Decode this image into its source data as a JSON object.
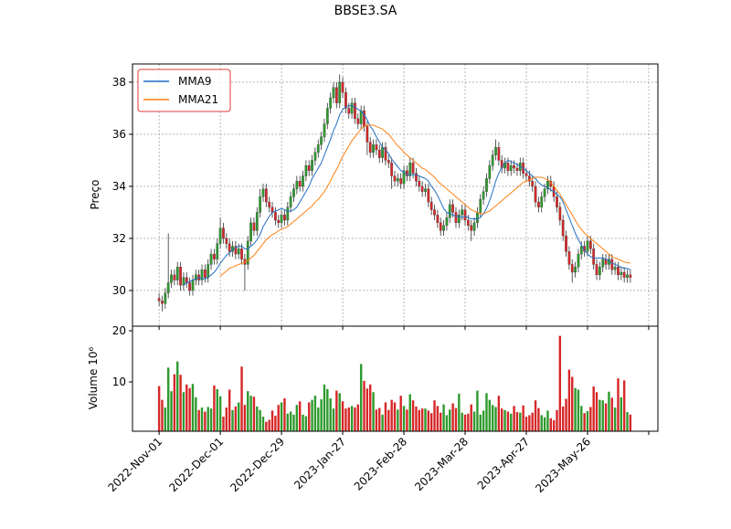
{
  "chart_data": {
    "type": "candlestick",
    "title": "BBSE3.SA",
    "ylabel": "Preço",
    "volume_ylabel": "Volume  10⁶",
    "up_color": "#2e9a2e",
    "down_color": "#d62728",
    "grid": true,
    "legend": "upper left",
    "xlim": [
      -8.7,
      163
    ],
    "xticks": [
      {
        "value": 0,
        "label": "2022-Nov-01"
      },
      {
        "value": 20,
        "label": "2022-Dec-01"
      },
      {
        "value": 40,
        "label": "2022-Dec-29"
      },
      {
        "value": 60,
        "label": "2023-Jan-27"
      },
      {
        "value": 80,
        "label": "2023-Feb-28"
      },
      {
        "value": 100,
        "label": "2023-Mar-28"
      },
      {
        "value": 120,
        "label": "2023-Apr-27"
      },
      {
        "value": 140,
        "label": "2023-May-26"
      },
      {
        "value": 160,
        "label": null
      }
    ],
    "ylim": [
      28.63,
      38.7
    ],
    "yticks": [
      30,
      32,
      34,
      36,
      38
    ],
    "volume_ylim": [
      0.36,
      20.9
    ],
    "volume_yticks": [
      10,
      20
    ],
    "open": [
      29.7,
      29.6,
      29.5,
      29.9,
      30.3,
      30.6,
      30.4,
      30.9,
      30.2,
      30.5,
      30.3,
      30.0,
      30.4,
      30.6,
      30.4,
      30.8,
      30.5,
      31.0,
      31.4,
      31.2,
      31.8,
      32.4,
      32.0,
      31.8,
      31.5,
      31.7,
      31.4,
      31.6,
      31.2,
      31.0,
      31.9,
      32.6,
      32.3,
      33.0,
      33.6,
      33.9,
      33.4,
      33.2,
      33.0,
      32.7,
      32.6,
      32.9,
      32.7,
      33.2,
      33.6,
      33.9,
      34.2,
      34.0,
      34.4,
      34.8,
      34.6,
      35.0,
      35.3,
      35.6,
      35.9,
      36.4,
      37.0,
      37.4,
      37.8,
      37.2,
      38.0,
      37.6,
      37.0,
      36.8,
      37.2,
      36.6,
      36.4,
      36.9,
      36.3,
      35.7,
      35.3,
      35.6,
      35.4,
      35.1,
      35.5,
      35.0,
      34.9,
      34.4,
      34.2,
      34.3,
      34.1,
      34.6,
      34.4,
      34.9,
      34.5,
      34.2,
      34.0,
      33.8,
      33.9,
      33.4,
      33.1,
      32.9,
      32.6,
      32.3,
      32.5,
      32.8,
      33.3,
      33.0,
      32.6,
      32.9,
      33.1,
      32.7,
      32.5,
      32.3,
      32.6,
      33.0,
      33.5,
      33.8,
      34.3,
      34.8,
      35.2,
      35.5,
      35.0,
      34.7,
      34.9,
      34.6,
      34.8,
      34.7,
      34.6,
      34.9,
      34.5,
      34.4,
      34.2,
      34.0,
      33.4,
      33.2,
      33.6,
      33.9,
      34.2,
      34.0,
      33.6,
      33.2,
      32.7,
      32.1,
      31.5,
      31.0,
      30.7,
      30.9,
      31.4,
      31.7,
      31.5,
      31.9,
      31.6,
      31.0,
      30.6,
      30.9,
      31.2,
      31.0,
      31.2,
      30.8,
      30.9,
      30.6,
      30.7,
      30.5,
      30.6
    ],
    "high": [
      29.9,
      29.8,
      30.1,
      32.2,
      30.8,
      30.8,
      31.1,
      31.1,
      30.7,
      30.7,
      30.5,
      30.6,
      30.8,
      30.8,
      31.0,
      31.0,
      31.2,
      31.6,
      31.6,
      32.0,
      32.8,
      32.6,
      32.2,
      32.0,
      31.9,
      31.9,
      31.8,
      31.8,
      31.4,
      32.1,
      32.8,
      32.8,
      33.2,
      33.9,
      34.1,
      34.1,
      33.6,
      33.4,
      33.2,
      32.9,
      33.1,
      33.1,
      33.4,
      33.8,
      34.1,
      34.4,
      34.4,
      34.6,
      35.0,
      35.0,
      35.2,
      35.5,
      35.8,
      36.1,
      36.6,
      37.2,
      37.6,
      38.0,
      38.0,
      38.3,
      38.2,
      37.8,
      37.2,
      37.4,
      37.4,
      36.8,
      37.1,
      37.1,
      36.5,
      35.9,
      35.8,
      35.8,
      35.6,
      35.7,
      35.7,
      35.2,
      35.1,
      34.6,
      34.5,
      34.5,
      34.8,
      34.8,
      35.1,
      35.1,
      34.7,
      34.4,
      34.2,
      34.1,
      34.1,
      33.6,
      33.3,
      33.1,
      32.8,
      32.7,
      33.0,
      33.5,
      33.5,
      33.2,
      33.1,
      33.3,
      33.3,
      32.9,
      32.7,
      32.8,
      33.2,
      33.7,
      34.0,
      34.5,
      35.0,
      35.4,
      35.8,
      35.7,
      35.2,
      35.1,
      35.1,
      35.0,
      35.0,
      34.9,
      35.1,
      35.1,
      34.7,
      34.6,
      34.4,
      34.2,
      33.6,
      33.8,
      34.1,
      34.4,
      34.4,
      34.2,
      33.8,
      33.4,
      32.9,
      32.3,
      31.7,
      31.2,
      31.1,
      31.6,
      31.9,
      31.9,
      32.1,
      32.1,
      31.8,
      31.2,
      31.1,
      31.4,
      31.4,
      31.4,
      31.4,
      31.1,
      31.1,
      30.9,
      30.9,
      30.8,
      30.8
    ],
    "low": [
      29.4,
      29.2,
      29.3,
      29.7,
      30.1,
      30.2,
      30.2,
      30.0,
      30.0,
      30.1,
      29.8,
      29.8,
      30.2,
      30.2,
      30.2,
      30.3,
      30.3,
      30.8,
      31.0,
      31.0,
      31.6,
      31.8,
      31.6,
      31.3,
      31.3,
      31.2,
      31.2,
      31.0,
      30.0,
      30.8,
      31.7,
      32.1,
      32.1,
      32.8,
      33.4,
      33.2,
      33.0,
      32.8,
      32.5,
      32.4,
      32.4,
      32.5,
      32.5,
      33.0,
      33.4,
      33.7,
      33.8,
      33.8,
      34.2,
      34.4,
      34.4,
      34.8,
      35.1,
      35.4,
      35.7,
      36.2,
      36.8,
      37.2,
      37.0,
      37.0,
      37.4,
      36.8,
      36.6,
      36.6,
      36.4,
      36.2,
      36.2,
      36.1,
      35.2,
      35.1,
      35.1,
      35.2,
      34.9,
      34.9,
      34.8,
      34.7,
      33.9,
      34.0,
      34.0,
      33.9,
      33.9,
      34.2,
      34.2,
      34.3,
      34.0,
      33.8,
      33.6,
      33.6,
      33.2,
      32.9,
      32.7,
      32.4,
      32.1,
      32.1,
      32.3,
      32.6,
      32.8,
      32.4,
      32.4,
      32.7,
      32.5,
      32.3,
      31.9,
      32.1,
      32.4,
      32.8,
      33.3,
      33.6,
      34.1,
      34.6,
      35.0,
      34.8,
      34.5,
      34.5,
      34.4,
      34.4,
      34.5,
      34.4,
      34.4,
      34.3,
      34.2,
      34.0,
      33.8,
      33.2,
      33.0,
      33.0,
      33.4,
      33.7,
      33.8,
      33.4,
      33.0,
      32.5,
      31.9,
      31.3,
      30.8,
      30.3,
      30.5,
      30.7,
      31.2,
      31.3,
      31.3,
      31.4,
      30.8,
      30.4,
      30.4,
      30.7,
      30.8,
      30.8,
      30.6,
      30.6,
      30.4,
      30.4,
      30.3,
      30.3,
      30.3
    ],
    "close": [
      29.6,
      29.5,
      29.9,
      30.3,
      30.6,
      30.4,
      30.9,
      30.2,
      30.5,
      30.3,
      30.0,
      30.4,
      30.6,
      30.4,
      30.8,
      30.5,
      31.0,
      31.4,
      31.2,
      31.8,
      32.4,
      32.0,
      31.8,
      31.5,
      31.7,
      31.4,
      31.6,
      31.2,
      31.0,
      31.9,
      32.6,
      32.3,
      33.0,
      33.6,
      33.9,
      33.4,
      33.2,
      33.0,
      32.7,
      32.6,
      32.9,
      32.7,
      33.2,
      33.6,
      33.9,
      34.2,
      34.0,
      34.4,
      34.8,
      34.6,
      35.0,
      35.3,
      35.6,
      35.9,
      36.4,
      37.0,
      37.4,
      37.8,
      37.2,
      38.0,
      37.6,
      37.0,
      36.8,
      37.2,
      36.6,
      36.4,
      36.9,
      36.3,
      35.7,
      35.3,
      35.6,
      35.4,
      35.1,
      35.5,
      35.0,
      34.9,
      34.4,
      34.2,
      34.3,
      34.1,
      34.6,
      34.4,
      34.9,
      34.5,
      34.2,
      34.0,
      33.8,
      33.9,
      33.4,
      33.1,
      32.9,
      32.6,
      32.3,
      32.5,
      32.8,
      33.3,
      33.0,
      32.6,
      32.9,
      33.1,
      32.7,
      32.5,
      32.3,
      32.6,
      33.0,
      33.5,
      33.8,
      34.3,
      34.8,
      35.2,
      35.5,
      35.0,
      34.7,
      34.9,
      34.6,
      34.8,
      34.7,
      34.6,
      34.9,
      34.5,
      34.4,
      34.2,
      34.0,
      33.4,
      33.2,
      33.6,
      33.9,
      34.2,
      34.0,
      33.6,
      33.2,
      32.7,
      32.1,
      31.5,
      31.0,
      30.7,
      30.9,
      31.4,
      31.7,
      31.5,
      31.9,
      31.6,
      31.0,
      30.6,
      30.9,
      31.2,
      31.0,
      31.2,
      30.8,
      30.9,
      30.6,
      30.7,
      30.5,
      30.6,
      30.5
    ],
    "volume": [
      9.2,
      6.5,
      5.0,
      12.8,
      8.2,
      11.5,
      14.0,
      11.4,
      8.0,
      9.5,
      8.8,
      9.6,
      7.0,
      4.5,
      5.0,
      4.2,
      5.1,
      4.8,
      9.3,
      8.6,
      7.2,
      3.2,
      5.0,
      8.5,
      4.5,
      5.2,
      6.0,
      13.0,
      5.5,
      8.2,
      7.3,
      7.1,
      5.2,
      4.5,
      3.2,
      2.2,
      2.6,
      4.4,
      3.4,
      5.5,
      6.0,
      6.8,
      3.8,
      4.2,
      3.6,
      5.5,
      6.2,
      3.6,
      3.3,
      6.0,
      6.5,
      7.3,
      5.0,
      6.6,
      9.5,
      8.6,
      6.8,
      4.8,
      8.3,
      7.8,
      6.2,
      4.8,
      5.0,
      5.3,
      5.0,
      5.6,
      13.5,
      10.2,
      8.7,
      9.5,
      8.0,
      4.6,
      4.9,
      3.6,
      6.0,
      4.5,
      6.5,
      6.0,
      4.6,
      7.3,
      5.3,
      4.6,
      7.6,
      6.4,
      5.2,
      4.5,
      4.8,
      4.8,
      4.4,
      3.9,
      6.4,
      5.3,
      4.0,
      5.6,
      3.5,
      4.6,
      5.8,
      4.9,
      7.7,
      4.0,
      3.6,
      3.8,
      5.6,
      4.2,
      8.3,
      3.6,
      4.4,
      7.8,
      6.5,
      5.5,
      5.1,
      7.3,
      4.8,
      4.5,
      4.2,
      3.8,
      5.3,
      4.1,
      4.0,
      5.4,
      3.2,
      3.5,
      4.0,
      6.4,
      4.9,
      3.5,
      3.1,
      4.4,
      2.9,
      2.5,
      4.5,
      19.0,
      5.2,
      6.7,
      12.4,
      11.0,
      8.8,
      8.5,
      5.3,
      3.9,
      4.3,
      5.1,
      9.1,
      8.0,
      6.5,
      6.4,
      5.8,
      8.1,
      6.9,
      5.0,
      10.7,
      7.0,
      10.3,
      4.1,
      3.6
    ],
    "series": [
      {
        "name": "MMA9",
        "color": "#1f6fc4",
        "values": [
          null,
          null,
          null,
          null,
          null,
          null,
          null,
          null,
          30.2,
          30.3,
          30.35,
          30.4,
          30.45,
          30.5,
          30.45,
          30.45,
          30.5,
          30.6,
          30.7,
          30.85,
          31.05,
          31.2,
          31.35,
          31.45,
          31.55,
          31.65,
          31.7,
          31.7,
          31.6,
          31.6,
          31.7,
          31.8,
          31.95,
          32.15,
          32.45,
          32.65,
          32.85,
          33.0,
          33.05,
          33.1,
          33.15,
          33.1,
          33.05,
          33.05,
          33.1,
          33.2,
          33.4,
          33.6,
          33.8,
          34.0,
          34.3,
          34.5,
          34.7,
          34.9,
          35.2,
          35.5,
          35.8,
          36.15,
          36.4,
          36.75,
          36.95,
          37.05,
          37.1,
          37.1,
          37.05,
          36.95,
          36.9,
          36.75,
          36.55,
          36.3,
          36.15,
          35.9,
          35.7,
          35.5,
          35.4,
          35.25,
          35.05,
          34.9,
          34.75,
          34.6,
          34.55,
          34.45,
          34.45,
          34.45,
          34.45,
          34.4,
          34.35,
          34.3,
          34.2,
          34.0,
          33.85,
          33.65,
          33.4,
          33.15,
          33.0,
          32.95,
          32.9,
          32.85,
          32.85,
          32.8,
          32.85,
          32.8,
          32.75,
          32.75,
          32.75,
          32.8,
          32.95,
          33.15,
          33.45,
          33.8,
          34.2,
          34.5,
          34.75,
          34.9,
          35.0,
          34.95,
          34.9,
          34.85,
          34.75,
          34.7,
          34.6,
          34.5,
          34.4,
          34.3,
          34.15,
          34.05,
          34.0,
          33.95,
          33.85,
          33.8,
          33.7,
          33.6,
          33.4,
          33.1,
          32.8,
          32.5,
          32.2,
          31.95,
          31.75,
          31.55,
          31.4,
          31.3,
          31.25,
          31.25,
          31.25,
          31.25,
          31.2,
          31.15,
          31.05,
          31.0,
          30.95,
          30.9,
          30.85,
          30.85,
          30.8
        ]
      },
      {
        "name": "MMA21",
        "color": "#ff7f0e",
        "values": [
          null,
          null,
          null,
          null,
          null,
          null,
          null,
          null,
          null,
          null,
          null,
          null,
          null,
          null,
          null,
          null,
          null,
          null,
          null,
          null,
          30.55,
          30.65,
          30.75,
          30.85,
          30.9,
          30.95,
          31.0,
          31.05,
          31.1,
          31.15,
          31.25,
          31.35,
          31.5,
          31.65,
          31.8,
          31.95,
          32.05,
          32.15,
          32.2,
          32.3,
          32.35,
          32.4,
          32.45,
          32.55,
          32.65,
          32.75,
          32.85,
          32.95,
          33.05,
          33.15,
          33.25,
          33.4,
          33.5,
          33.65,
          33.8,
          34.0,
          34.2,
          34.45,
          34.65,
          34.9,
          35.15,
          35.35,
          35.55,
          35.75,
          35.9,
          36.05,
          36.2,
          36.3,
          36.35,
          36.35,
          36.35,
          36.3,
          36.25,
          36.2,
          36.1,
          36.0,
          35.85,
          35.7,
          35.55,
          35.45,
          35.3,
          35.2,
          35.1,
          35.0,
          34.9,
          34.8,
          34.7,
          34.65,
          34.55,
          34.45,
          34.35,
          34.2,
          34.1,
          34.0,
          33.9,
          33.8,
          33.7,
          33.6,
          33.5,
          33.4,
          33.3,
          33.2,
          33.1,
          33.05,
          33.0,
          32.95,
          32.95,
          33.0,
          33.05,
          33.15,
          33.25,
          33.35,
          33.45,
          33.55,
          33.65,
          33.75,
          33.85,
          33.95,
          34.05,
          34.15,
          34.2,
          34.25,
          34.3,
          34.35,
          34.35,
          34.35,
          34.3,
          34.25,
          34.15,
          34.0,
          33.85,
          33.7,
          33.5,
          33.3,
          33.1,
          32.9,
          32.7,
          32.5,
          32.35,
          32.2,
          32.1,
          32.0,
          31.9,
          31.8,
          31.7,
          31.6,
          31.5,
          31.4,
          31.3,
          31.25,
          31.2,
          31.15,
          31.1,
          31.07,
          31.05
        ]
      }
    ]
  }
}
